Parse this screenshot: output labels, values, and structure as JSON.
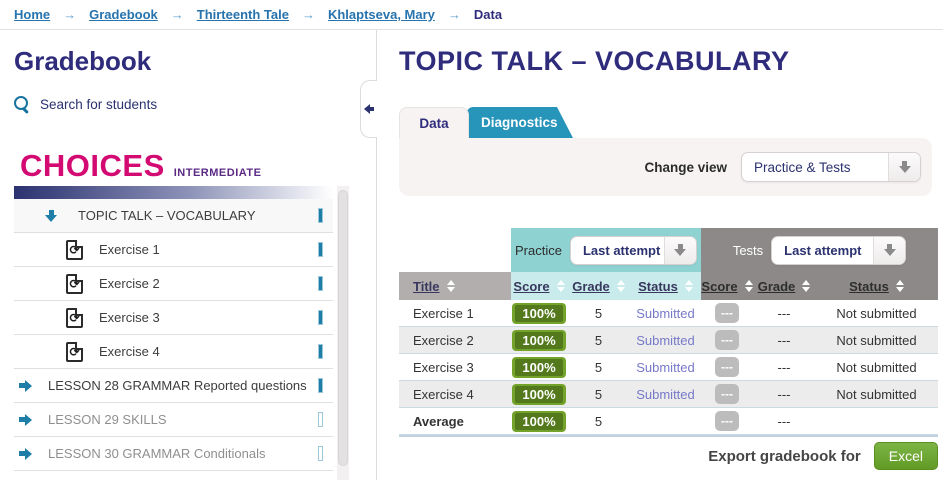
{
  "breadcrumb": {
    "separator": "→",
    "items": [
      "Home",
      "Gradebook",
      "Thirteenth Tale",
      "Khlaptseva, Mary"
    ],
    "current": "Data"
  },
  "sidebar": {
    "title": "Gradebook",
    "search_label": "Search for students",
    "logo": {
      "name": "CHOICES",
      "level": "INTERMEDIATE"
    },
    "tree": [
      {
        "label": "TOPIC TALK – VOCABULARY"
      },
      {
        "label": "Exercise 1"
      },
      {
        "label": "Exercise 2"
      },
      {
        "label": "Exercise 3"
      },
      {
        "label": "Exercise 4"
      },
      {
        "label": "LESSON 28 GRAMMAR Reported questions"
      },
      {
        "label": "LESSON 29 SKILLS"
      },
      {
        "label": "LESSON 30 GRAMMAR Conditionals"
      }
    ]
  },
  "main": {
    "title": "TOPIC TALK – VOCABULARY",
    "tabs": [
      {
        "label": "Data"
      },
      {
        "label": "Diagnostics"
      }
    ],
    "change_view": {
      "label": "Change view",
      "value": "Practice & Tests"
    },
    "table": {
      "practice_label": "Practice",
      "practice_dropdown": "Last attempt",
      "tests_label": "Tests",
      "tests_dropdown": "Last attempt",
      "title_column": "Title",
      "practice_columns": [
        "Score",
        "Grade",
        "Status"
      ],
      "tests_columns": [
        "Score",
        "Grade",
        "Status"
      ],
      "rows": [
        {
          "title": "Exercise 1",
          "p_score": "100%",
          "p_grade": "5",
          "p_status": "Submitted",
          "t_score": "---",
          "t_grade": "---",
          "t_status": "Not submitted"
        },
        {
          "title": "Exercise 2",
          "p_score": "100%",
          "p_grade": "5",
          "p_status": "Submitted",
          "t_score": "---",
          "t_grade": "---",
          "t_status": "Not submitted"
        },
        {
          "title": "Exercise 3",
          "p_score": "100%",
          "p_grade": "5",
          "p_status": "Submitted",
          "t_score": "---",
          "t_grade": "---",
          "t_status": "Not submitted"
        },
        {
          "title": "Exercise 4",
          "p_score": "100%",
          "p_grade": "5",
          "p_status": "Submitted",
          "t_score": "---",
          "t_grade": "---",
          "t_status": "Not submitted"
        },
        {
          "title": "Average",
          "p_score": "100%",
          "p_grade": "5",
          "p_status": "",
          "t_score": "---",
          "t_grade": "---",
          "t_status": ""
        }
      ]
    },
    "export": {
      "label": "Export gradebook for",
      "button": "Excel"
    }
  },
  "icons": {
    "search": "magnifier-icon",
    "tree_expanded": "fat-arrow-down",
    "tree_collapsed": "fat-arrow-right",
    "exercise": "page-sync-icon",
    "dropdown": "fat-arrow-down",
    "collapse_sidebar": "fat-arrow-left",
    "sort": "up-down-triangles"
  },
  "colors": {
    "navy": "#2f2c7c",
    "tab_teal": "#2794ba",
    "practice_teal": "#8fd2d2",
    "practice_light": "#c9ebeb",
    "tests_gray": "#8d8989",
    "score_green": "#74a32c",
    "logo_magenta": "#d40a73",
    "link_blue": "#2673ad"
  }
}
